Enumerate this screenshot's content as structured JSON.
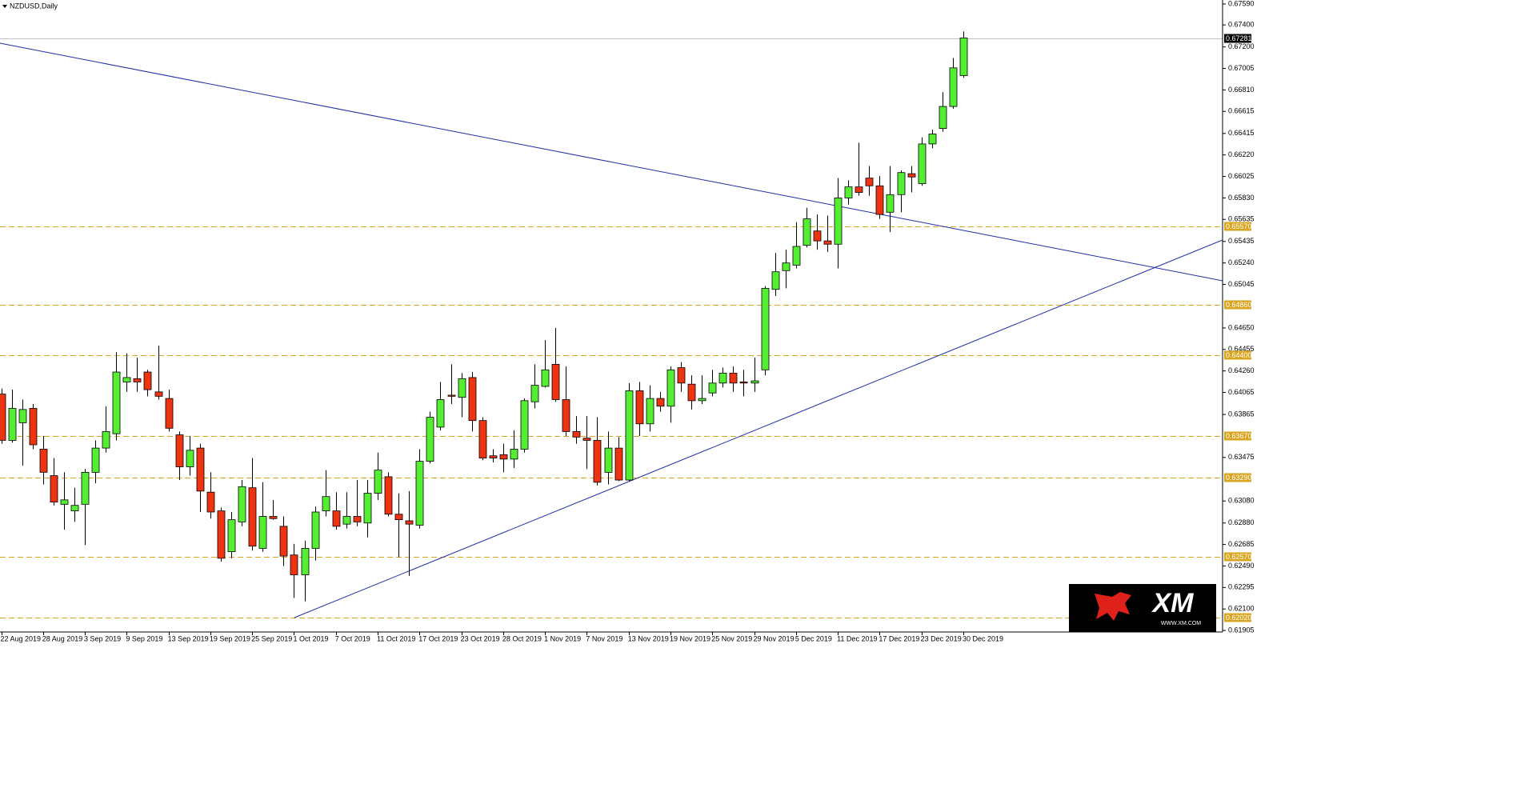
{
  "chart_data": {
    "type": "candlestick",
    "title": "NZDUSD,Daily",
    "categories": [
      "22 Aug 2019",
      null,
      null,
      null,
      "28 Aug 2019",
      null,
      null,
      null,
      "3 Sep 2019",
      null,
      null,
      null,
      "9 Sep 2019",
      null,
      null,
      null,
      "13 Sep 2019",
      null,
      null,
      null,
      "19 Sep 2019",
      null,
      null,
      null,
      "25 Sep 2019",
      null,
      null,
      null,
      "1 Oct 2019",
      null,
      null,
      null,
      "7 Oct 2019",
      null,
      null,
      null,
      "11 Oct 2019",
      null,
      null,
      null,
      "17 Oct 2019",
      null,
      null,
      null,
      "23 Oct 2019",
      null,
      null,
      null,
      "28 Oct 2019",
      null,
      null,
      null,
      "1 Nov 2019",
      null,
      null,
      null,
      "7 Nov 2019",
      null,
      null,
      null,
      "13 Nov 2019",
      null,
      null,
      null,
      "19 Nov 2019",
      null,
      null,
      null,
      "25 Nov 2019",
      null,
      null,
      null,
      "29 Nov 2019",
      null,
      null,
      null,
      "5 Dec 2019",
      null,
      null,
      null,
      "11 Dec 2019",
      null,
      null,
      null,
      "17 Dec 2019",
      null,
      null,
      null,
      "23 Dec 2019",
      null,
      null,
      null,
      "30 Dec 2019"
    ],
    "open": [
      0.6405,
      0.6363,
      0.6379,
      0.6392,
      0.6355,
      0.6331,
      0.6305,
      0.6299,
      0.6305,
      0.6334,
      0.6356,
      0.6369,
      0.6416,
      0.6419,
      0.6425,
      0.6407,
      0.6401,
      0.6368,
      0.6339,
      0.6356,
      0.6316,
      0.6299,
      0.6262,
      0.6289,
      0.632,
      0.6265,
      0.6294,
      0.6285,
      0.6259,
      0.6241,
      0.6265,
      0.6299,
      0.6299,
      0.6287,
      0.6294,
      0.6288,
      0.6315,
      0.633,
      0.6296,
      0.629,
      0.6286,
      0.6344,
      0.6375,
      0.6404,
      0.6402,
      0.642,
      0.6381,
      0.6349,
      0.635,
      0.6346,
      0.6355,
      0.6398,
      0.6412,
      0.6432,
      0.64,
      0.6371,
      0.6365,
      0.6363,
      0.6334,
      0.6356,
      0.6327,
      0.6408,
      0.6378,
      0.6401,
      0.6394,
      0.6429,
      0.6414,
      0.6399,
      0.6406,
      0.6415,
      0.6424,
      0.6416,
      0.6415,
      0.6427,
      0.65,
      0.6517,
      0.6522,
      0.654,
      0.6553,
      0.6544,
      0.6541,
      0.6583,
      0.6593,
      0.6601,
      0.6594,
      0.657,
      0.6586,
      0.6605,
      0.6596,
      0.6632,
      0.6646,
      0.6666,
      0.6694
    ],
    "high": [
      0.641,
      0.6409,
      0.64,
      0.6396,
      0.6367,
      0.6347,
      0.6334,
      0.632,
      0.6337,
      0.6363,
      0.6394,
      0.6443,
      0.6442,
      0.6438,
      0.6427,
      0.6449,
      0.6409,
      0.6371,
      0.6367,
      0.636,
      0.6334,
      0.6302,
      0.6298,
      0.6327,
      0.6347,
      0.6325,
      0.6309,
      0.6294,
      0.6269,
      0.6272,
      0.6303,
      0.6336,
      0.6316,
      0.6316,
      0.6327,
      0.6327,
      0.6352,
      0.6334,
      0.6315,
      0.6317,
      0.6355,
      0.6389,
      0.6416,
      0.6432,
      0.6424,
      0.6425,
      0.6384,
      0.6355,
      0.636,
      0.6372,
      0.6401,
      0.6432,
      0.6454,
      0.6465,
      0.643,
      0.6385,
      0.6385,
      0.6384,
      0.6371,
      0.6366,
      0.6415,
      0.6416,
      0.6413,
      0.6407,
      0.643,
      0.6434,
      0.6422,
      0.6422,
      0.6427,
      0.6429,
      0.643,
      0.6427,
      0.6438,
      0.6503,
      0.6533,
      0.6536,
      0.6561,
      0.6574,
      0.6568,
      0.6567,
      0.6601,
      0.6599,
      0.6633,
      0.6612,
      0.6603,
      0.6612,
      0.6608,
      0.6612,
      0.6638,
      0.6645,
      0.6679,
      0.671,
      0.6734
    ],
    "low": [
      0.636,
      0.6361,
      0.634,
      0.6355,
      0.6323,
      0.6304,
      0.6282,
      0.6289,
      0.6268,
      0.6324,
      0.6352,
      0.6363,
      0.6407,
      0.6407,
      0.6403,
      0.64,
      0.6371,
      0.6327,
      0.6331,
      0.6298,
      0.6292,
      0.6253,
      0.6256,
      0.6285,
      0.6263,
      0.6262,
      0.6291,
      0.6249,
      0.622,
      0.6217,
      0.6254,
      0.6294,
      0.6282,
      0.6283,
      0.6285,
      0.6275,
      0.6309,
      0.6294,
      0.6257,
      0.624,
      0.6283,
      0.6342,
      0.6372,
      0.6396,
      0.6384,
      0.6371,
      0.6345,
      0.6343,
      0.6334,
      0.6338,
      0.6352,
      0.6392,
      0.6411,
      0.6398,
      0.6367,
      0.636,
      0.6337,
      0.6322,
      0.6323,
      0.6326,
      0.6326,
      0.6367,
      0.6371,
      0.6389,
      0.6379,
      0.6407,
      0.6391,
      0.6396,
      0.6403,
      0.6411,
      0.6407,
      0.6403,
      0.6407,
      0.6422,
      0.6494,
      0.6501,
      0.6519,
      0.6538,
      0.6536,
      0.6534,
      0.6519,
      0.6577,
      0.6585,
      0.6585,
      0.6564,
      0.6552,
      0.657,
      0.6588,
      0.6594,
      0.6628,
      0.6643,
      0.6664,
      0.6692
    ],
    "close": [
      0.6363,
      0.6392,
      0.6391,
      0.6359,
      0.6334,
      0.6307,
      0.6309,
      0.6304,
      0.6334,
      0.6356,
      0.6371,
      0.6425,
      0.642,
      0.6416,
      0.6409,
      0.6403,
      0.6374,
      0.6339,
      0.6354,
      0.6317,
      0.6298,
      0.6256,
      0.6291,
      0.6321,
      0.6267,
      0.6294,
      0.6292,
      0.6258,
      0.6241,
      0.6265,
      0.6298,
      0.6312,
      0.6285,
      0.6294,
      0.6289,
      0.6315,
      0.6336,
      0.6296,
      0.6291,
      0.6287,
      0.6344,
      0.6384,
      0.64,
      0.6403,
      0.6419,
      0.6381,
      0.6347,
      0.6347,
      0.6346,
      0.6355,
      0.6399,
      0.6413,
      0.6427,
      0.64,
      0.6371,
      0.6366,
      0.6363,
      0.6325,
      0.6356,
      0.6327,
      0.6408,
      0.6378,
      0.6401,
      0.6394,
      0.6427,
      0.6415,
      0.6399,
      0.6401,
      0.6415,
      0.6424,
      0.6415,
      0.6415,
      0.6417,
      0.6501,
      0.6516,
      0.6524,
      0.6539,
      0.6564,
      0.6544,
      0.6541,
      0.6583,
      0.6593,
      0.6588,
      0.6594,
      0.6568,
      0.6586,
      0.6606,
      0.6602,
      0.6632,
      0.6641,
      0.6666,
      0.6701,
      0.67281
    ],
    "up_color": "#55ee33",
    "down_color": "#ee3311",
    "wick_color": "#000000",
    "ylim": [
      0.61891,
      0.67626
    ],
    "yticks": [
      {
        "value": 0.6759,
        "label": "0.67590"
      },
      {
        "value": 0.674,
        "label": "0.67400"
      },
      {
        "value": 0.672,
        "label": "0.67200"
      },
      {
        "value": 0.67005,
        "label": "0.67005"
      },
      {
        "value": 0.6681,
        "label": "0.66810"
      },
      {
        "value": 0.66615,
        "label": "0.66615"
      },
      {
        "value": 0.66415,
        "label": "0.66415"
      },
      {
        "value": 0.6622,
        "label": "0.66220"
      },
      {
        "value": 0.66025,
        "label": "0.66025"
      },
      {
        "value": 0.6583,
        "label": "0.65830"
      },
      {
        "value": 0.65635,
        "label": "0.65635"
      },
      {
        "value": 0.65435,
        "label": "0.65435"
      },
      {
        "value": 0.6524,
        "label": "0.65240"
      },
      {
        "value": 0.65045,
        "label": "0.65045"
      },
      {
        "value": 0.6465,
        "label": "0.64650"
      },
      {
        "value": 0.64455,
        "label": "0.64455"
      },
      {
        "value": 0.6426,
        "label": "0.64260"
      },
      {
        "value": 0.64065,
        "label": "0.64065"
      },
      {
        "value": 0.63865,
        "label": "0.63865"
      },
      {
        "value": 0.63475,
        "label": "0.63475"
      },
      {
        "value": 0.6308,
        "label": "0.63080"
      },
      {
        "value": 0.6288,
        "label": "0.62880"
      },
      {
        "value": 0.62685,
        "label": "0.62685"
      },
      {
        "value": 0.6249,
        "label": "0.62490"
      },
      {
        "value": 0.62295,
        "label": "0.62295"
      },
      {
        "value": 0.621,
        "label": "0.62100"
      },
      {
        "value": 0.61905,
        "label": "0.61905"
      }
    ],
    "levels": [
      {
        "value": 0.6557,
        "label": "0.65570"
      },
      {
        "value": 0.6486,
        "label": "0.64860"
      },
      {
        "value": 0.644,
        "label": "0.64400"
      },
      {
        "value": 0.6367,
        "label": "0.63670"
      },
      {
        "value": 0.6329,
        "label": "0.63290"
      },
      {
        "value": 0.6257,
        "label": "0.62570"
      },
      {
        "value": 0.6202,
        "label": "0.62020"
      }
    ],
    "level_color": "#daa520",
    "current_price": {
      "value": 0.67281,
      "label": "0.67281"
    },
    "brand": "XM",
    "brand_url": "WWW.XM.COM"
  }
}
